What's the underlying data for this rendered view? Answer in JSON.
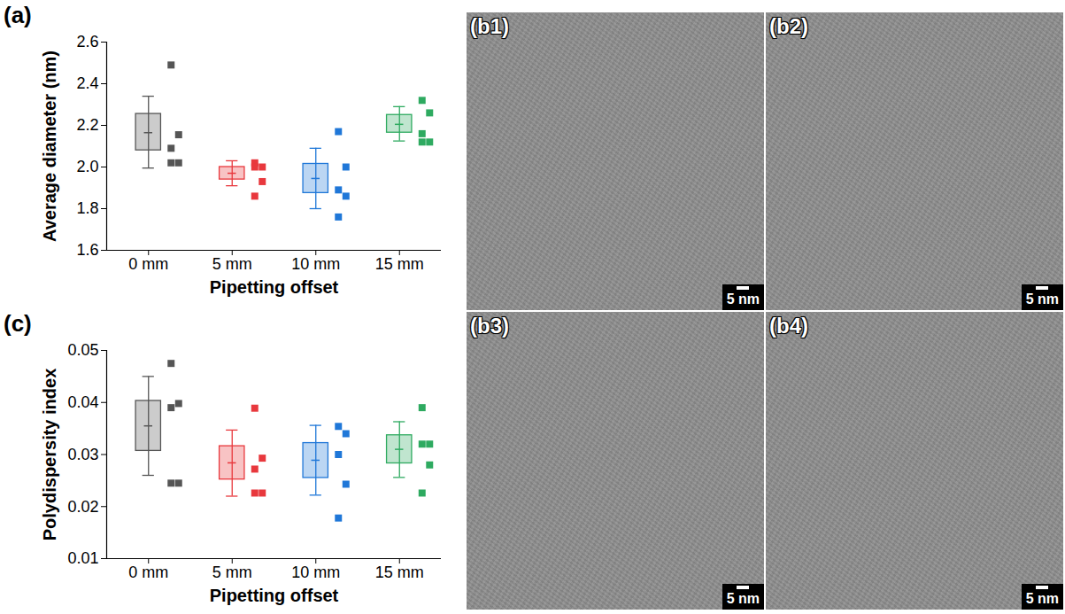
{
  "chart_data": [
    {
      "type": "box",
      "panel_label": "(a)",
      "xlabel": "Pipetting offset",
      "ylabel": "Average diameter (nm)",
      "categories": [
        "0 mm",
        "5 mm",
        "10 mm",
        "15 mm"
      ],
      "colors": [
        "#555555",
        "#e8383d",
        "#1f77d8",
        "#2eaa60"
      ],
      "marker": "square",
      "ylim": [
        1.6,
        2.6
      ],
      "yticks": [
        1.6,
        1.8,
        {
          "value": 2,
          "label": "2.0"
        },
        2.2,
        2.4,
        2.6
      ],
      "whisker_low": [
        1.995,
        1.91,
        1.8,
        2.125
      ],
      "box_low": [
        2.08,
        1.94,
        1.875,
        2.165
      ],
      "mean": [
        2.165,
        1.97,
        1.945,
        2.205
      ],
      "box_high": [
        2.255,
        2.0,
        2.015,
        2.25
      ],
      "whisker_high": [
        2.34,
        2.03,
        2.09,
        2.29
      ],
      "points": [
        [
          2.49,
          2.155,
          2.09,
          2.02,
          2.02
        ],
        [
          2.02,
          2.0,
          2.0,
          1.93,
          1.86
        ],
        [
          2.17,
          2.0,
          1.89,
          1.86,
          1.76
        ],
        [
          2.32,
          2.26,
          2.16,
          2.12,
          2.12
        ]
      ]
    },
    {
      "type": "box",
      "panel_label": "(c)",
      "xlabel": "Pipetting offset",
      "ylabel": "Polydispersity index",
      "categories": [
        "0 mm",
        "5 mm",
        "10 mm",
        "15 mm"
      ],
      "colors": [
        "#555555",
        "#e8383d",
        "#1f77d8",
        "#2eaa60"
      ],
      "marker": "square",
      "ylim": [
        0.01,
        0.05
      ],
      "yticks": [
        0.01,
        0.02,
        0.03,
        0.04,
        0.05
      ],
      "whisker_low": [
        0.026,
        0.022,
        0.0222,
        0.0256
      ],
      "box_low": [
        0.0307,
        0.0252,
        0.0255,
        0.0283
      ],
      "mean": [
        0.0355,
        0.0284,
        0.0289,
        0.031
      ],
      "box_high": [
        0.0403,
        0.0316,
        0.0322,
        0.0337
      ],
      "whisker_high": [
        0.045,
        0.0347,
        0.0356,
        0.0363
      ],
      "points": [
        [
          0.0475,
          0.0398,
          0.039,
          0.0245,
          0.0245
        ],
        [
          0.0389,
          0.0293,
          0.0272,
          0.0226,
          0.0226
        ],
        [
          0.0354,
          0.034,
          0.03,
          0.0243,
          0.0178
        ],
        [
          0.039,
          0.032,
          0.032,
          0.028,
          0.0226
        ]
      ]
    }
  ],
  "image_panels": [
    {
      "label": "(b1)",
      "scale_bar": "5 nm"
    },
    {
      "label": "(b2)",
      "scale_bar": "5 nm"
    },
    {
      "label": "(b3)",
      "scale_bar": "5 nm"
    },
    {
      "label": "(b4)",
      "scale_bar": "5 nm"
    }
  ]
}
